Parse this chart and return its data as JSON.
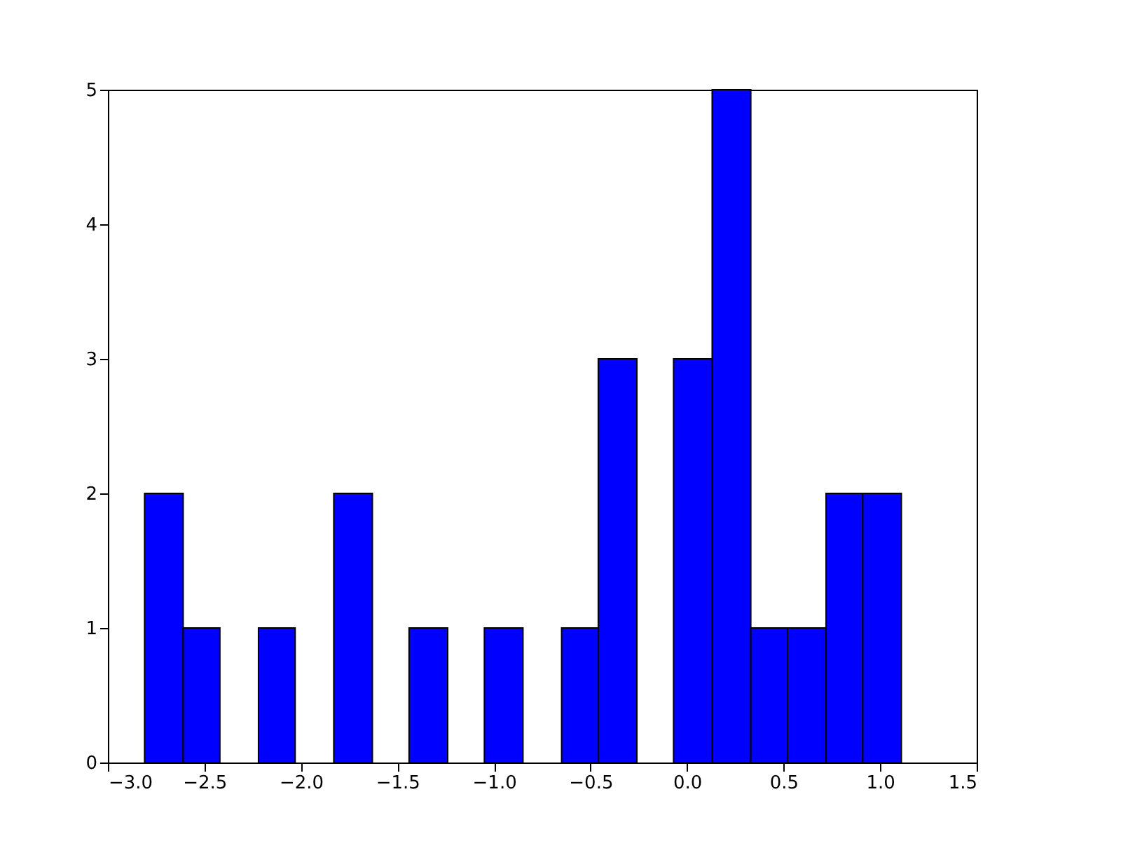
{
  "chart_data": {
    "type": "histogram",
    "bins": [
      -2.81,
      -2.61,
      -2.42,
      -2.22,
      -2.03,
      -1.83,
      -1.63,
      -1.44,
      -1.24,
      -1.05,
      -0.85,
      -0.65,
      -0.46,
      -0.26,
      -0.07,
      0.13,
      0.33,
      0.52,
      0.72,
      0.91,
      1.11
    ],
    "values": [
      2,
      1,
      0,
      1,
      0,
      2,
      0,
      1,
      0,
      1,
      0,
      1,
      3,
      0,
      3,
      5,
      1,
      1,
      2,
      2
    ],
    "color": "#0000ff",
    "xlim": [
      -3.0,
      1.5
    ],
    "xticks": [
      {
        "value": -3.0,
        "label": "−3.0"
      },
      {
        "value": -2.5,
        "label": "−2.5"
      },
      {
        "value": -2.0,
        "label": "−2.0"
      },
      {
        "value": -1.5,
        "label": "−1.5"
      },
      {
        "value": -1.0,
        "label": "−1.0"
      },
      {
        "value": -0.5,
        "label": "−0.5"
      },
      {
        "value": 0.0,
        "label": "0.0"
      },
      {
        "value": 0.5,
        "label": "0.5"
      },
      {
        "value": 1.0,
        "label": "1.0"
      },
      {
        "value": 1.5,
        "label": "1.5"
      }
    ],
    "ylim": [
      0,
      5
    ],
    "yticks": [
      0,
      1,
      2,
      3,
      4,
      5
    ],
    "grid": false
  }
}
